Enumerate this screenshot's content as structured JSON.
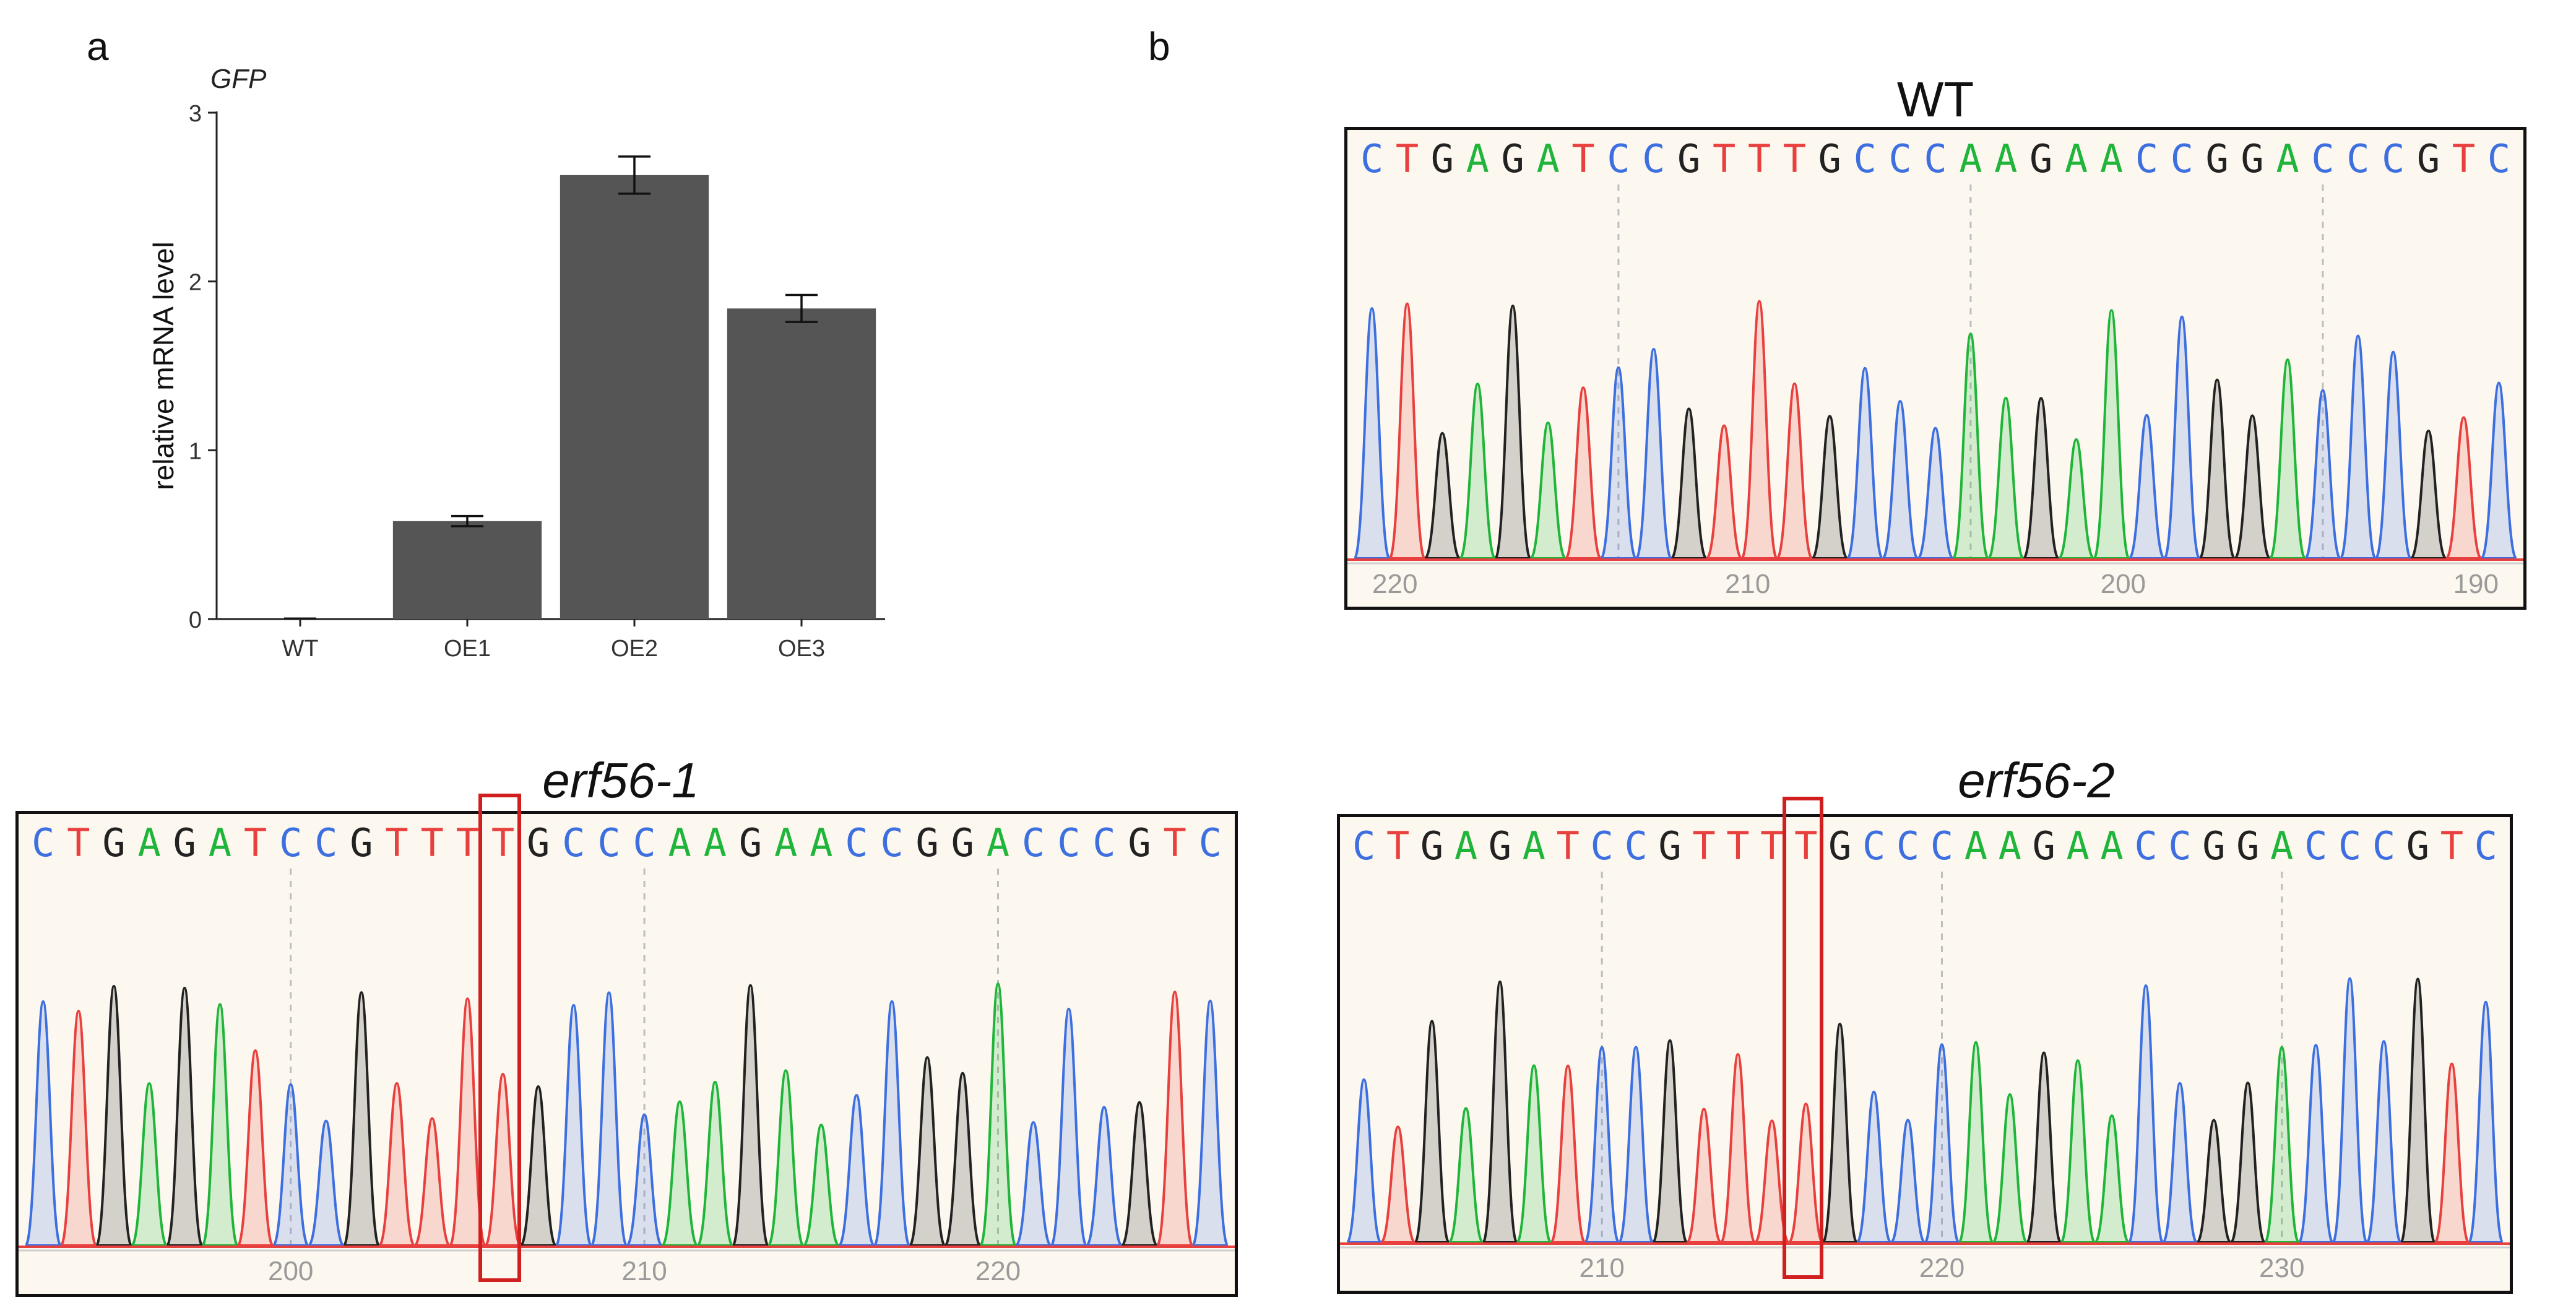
{
  "panels": {
    "a": "a",
    "b": "b"
  },
  "colors": {
    "A": "#1fb53a",
    "C": "#3d6fe0",
    "G": "#222222",
    "T": "#e8403e",
    "bar": "#555555",
    "highlight": "#d11f1f"
  },
  "chart_data": {
    "type": "bar",
    "title": "GFP",
    "ylabel": "relative mRNA level",
    "xlabel": "",
    "categories": [
      "WT",
      "OE1",
      "OE2",
      "OE3"
    ],
    "values": [
      0.0,
      0.58,
      2.63,
      1.84
    ],
    "errors": [
      0.0,
      0.03,
      0.11,
      0.08
    ],
    "ylim": [
      0,
      3
    ],
    "yticks": [
      "0",
      "1",
      "2",
      "3"
    ],
    "grid": false
  },
  "chromatograms": [
    {
      "id": "wt",
      "title": "WT",
      "italic": false,
      "sequence": "CTGAGATCCGTTTGCCCAAGAACCGGACCCGTC",
      "axis_labels": [
        "220",
        "210",
        "200",
        "190"
      ],
      "highlight_index": -1
    },
    {
      "id": "erf56-1",
      "title": "erf56-1",
      "italic": true,
      "sequence": "CTGAGATCCGTTTTGCCCAAGAACCGGACCCGTC",
      "axis_labels": [
        "200",
        "210",
        "220"
      ],
      "highlight_index": 13
    },
    {
      "id": "erf56-2",
      "title": "erf56-2",
      "italic": true,
      "sequence": "CTGAGATCCGTTTTGCCCAAGAACCGGACCCGTC",
      "axis_labels": [
        "210",
        "220",
        "230"
      ],
      "highlight_index": 13
    }
  ]
}
